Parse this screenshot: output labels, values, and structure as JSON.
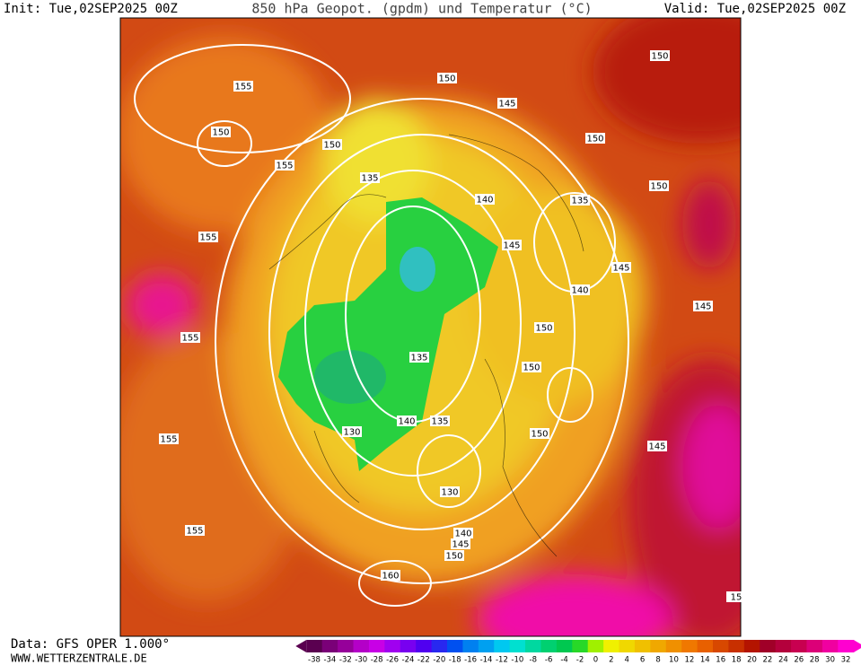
{
  "header": {
    "init": "Init: Tue,02SEP2025 00Z",
    "title": "850 hPa Geopot. (gpdm) und Temperatur (°C)",
    "valid": "Valid: Tue,02SEP2025 00Z"
  },
  "footer": {
    "data_source": "Data: GFS OPER 1.000°",
    "website": "WWW.WETTERZENTRALE.DE"
  },
  "contour_labels": [
    "155",
    "150",
    "155",
    "155",
    "150",
    "135",
    "150",
    "145",
    "150",
    "150",
    "140",
    "135",
    "150",
    "145",
    "145",
    "140",
    "145",
    "150",
    "155",
    "150",
    "135",
    "140",
    "135",
    "130",
    "150",
    "155",
    "145",
    "130",
    "140",
    "145",
    "150",
    "155",
    "160",
    "15"
  ],
  "colorbar": {
    "ticks": [
      -38,
      -34,
      -32,
      -30,
      -28,
      -26,
      -24,
      -22,
      -20,
      -18,
      -16,
      -14,
      -12,
      -10,
      -8,
      -6,
      -4,
      -2,
      0,
      2,
      4,
      6,
      8,
      10,
      12,
      14,
      16,
      18,
      20,
      22,
      24,
      26,
      28,
      30,
      32
    ],
    "colors": [
      "#5a0050",
      "#7a0078",
      "#96009a",
      "#b400c8",
      "#c800e6",
      "#a000f0",
      "#7800f0",
      "#5000f0",
      "#2828f0",
      "#0050f0",
      "#0080f0",
      "#00a0f0",
      "#00c8f0",
      "#00e0d0",
      "#00d8a0",
      "#00d070",
      "#00c850",
      "#28d828",
      "#a0f000",
      "#f0f000",
      "#f0d800",
      "#f0c000",
      "#f0a800",
      "#f09000",
      "#f07800",
      "#e86000",
      "#d84800",
      "#c83000",
      "#b41400",
      "#a00028",
      "#b4003c",
      "#c80050",
      "#dc0078",
      "#f000a0",
      "#ff00d0"
    ]
  }
}
